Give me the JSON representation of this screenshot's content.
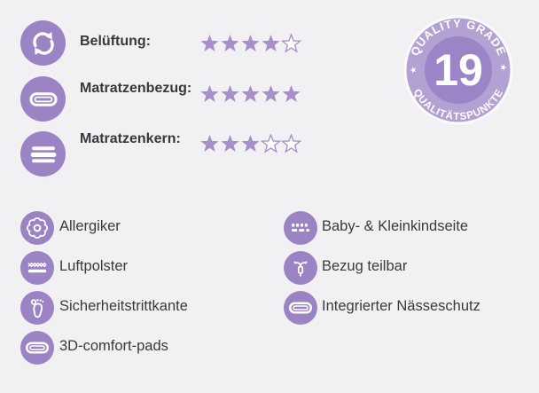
{
  "colors": {
    "background": "#f1f1f4",
    "icon_circle": "#9b83c4",
    "star_filled": "#a78fc9",
    "star_empty_fill": "#ffffff",
    "badge_ring": "#b3a1d3",
    "badge_inner": "#9c85c6",
    "text_dark": "#38373c"
  },
  "ratings": [
    {
      "icon": "ventilation-refresh-icon",
      "label": "Belüftung:",
      "stars": 4,
      "max": 5
    },
    {
      "icon": "mattress-cover-icon",
      "label": "Matratzenbezug:",
      "stars": 5,
      "max": 5
    },
    {
      "icon": "mattress-core-icon",
      "label": "Matratzenkern:",
      "stars": 3,
      "max": 5
    }
  ],
  "badge": {
    "value": "19",
    "arc_top": "QUALITY GRADE",
    "arc_bottom": "QUALITÄTSPUNKTE",
    "star_symbol": "★"
  },
  "features": {
    "left": [
      {
        "icon": "flower-allergy-icon",
        "label": "Allergiker"
      },
      {
        "icon": "air-cushion-icon",
        "label": "Luftpolster"
      },
      {
        "icon": "footprint-icon",
        "label": "Sicherheitstrittkante"
      },
      {
        "icon": "comfort-pad-icon",
        "label": "3D-comfort-pads"
      }
    ],
    "right": [
      {
        "icon": "baby-side-icon",
        "label": "Baby- & Kleinkindseite"
      },
      {
        "icon": "zipper-icon",
        "label": "Bezug teilbar"
      },
      {
        "icon": "moisture-pad-icon",
        "label": "Integrierter Nässeschutz"
      }
    ]
  }
}
